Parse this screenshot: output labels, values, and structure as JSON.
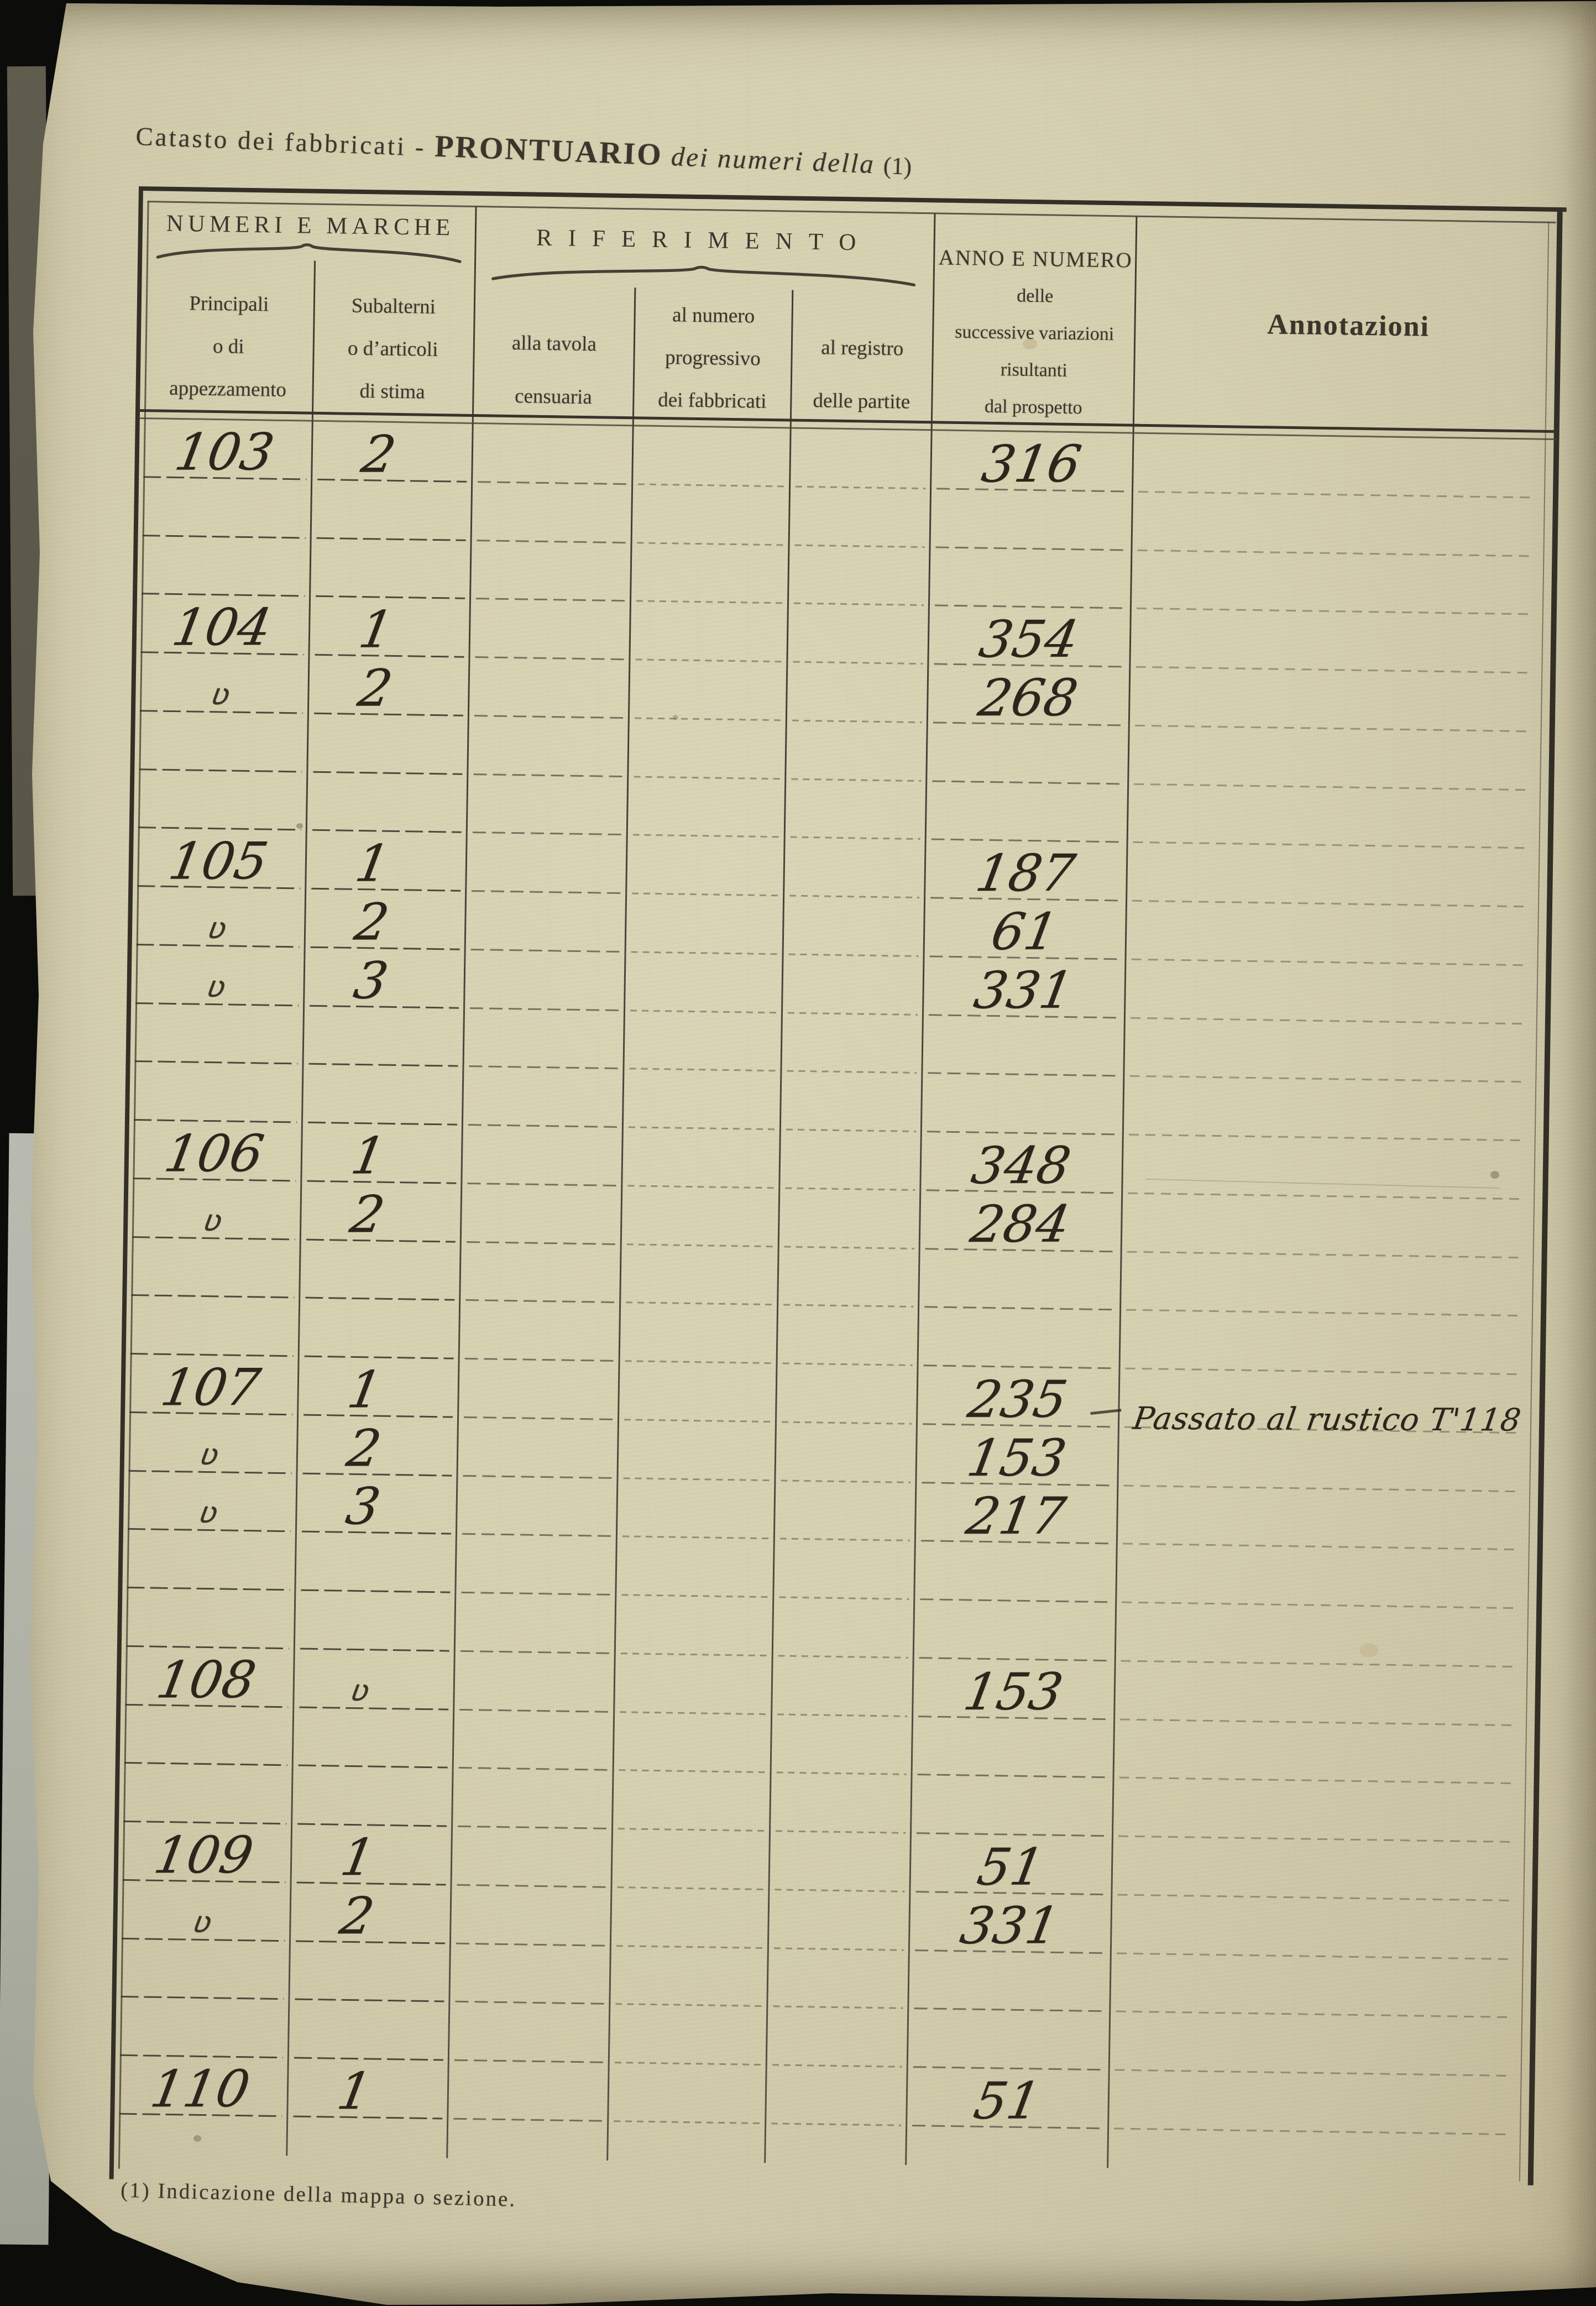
{
  "page": {
    "title": {
      "prefix": "Catasto dei fabbricati - ",
      "main": "PRONTUARIO",
      "italic": " dei numeri della ",
      "footnote_ref": "(1)"
    },
    "footnote": "(1) Indicazione della mappa o sezione."
  },
  "colors": {
    "paper": "#d5d0af",
    "ink_print": "#3b362c",
    "ink_hand": "#2b251b",
    "rule": "#474135",
    "background": "#0c0c0a"
  },
  "table": {
    "group_headers": [
      {
        "label": "NUMERI E MARCHE",
        "spans": [
          "principali",
          "subalterni"
        ]
      },
      {
        "label": "RIFERIMENTO",
        "spans": [
          "tavola",
          "progressivo",
          "registro"
        ]
      }
    ],
    "columns": [
      {
        "id": "principali",
        "label_lines": [
          "Principali",
          "o di",
          "appezzamento"
        ]
      },
      {
        "id": "subalterni",
        "label_lines": [
          "Subalterni",
          "o d’articoli",
          "di stima"
        ]
      },
      {
        "id": "tavola",
        "label_lines": [
          "alla tavola",
          "censuaria"
        ]
      },
      {
        "id": "progressivo",
        "label_lines": [
          "al numero",
          "progressivo",
          "dei fabbricati"
        ]
      },
      {
        "id": "registro",
        "label_lines": [
          "al registro",
          "delle partite"
        ]
      },
      {
        "id": "anno",
        "label_lines": [
          "ANNO E NUMERO",
          "delle",
          "successive variazioni",
          "risultanti",
          "dal prospetto"
        ]
      },
      {
        "id": "annotazioni",
        "label_lines": [
          "Annotazioni"
        ]
      }
    ],
    "ditto_mark": "ʋ",
    "rows": [
      {
        "principali": "103",
        "subalterni": "2",
        "anno": "316"
      },
      {},
      {},
      {
        "principali": "104",
        "subalterni": "1",
        "anno": "354"
      },
      {
        "principali": "ʋ",
        "subalterni": "2",
        "anno": "268"
      },
      {},
      {},
      {
        "principali": "105",
        "subalterni": "1",
        "anno": "187"
      },
      {
        "principali": "ʋ",
        "subalterni": "2",
        "anno": "61"
      },
      {
        "principali": "ʋ",
        "subalterni": "3",
        "anno": "331"
      },
      {},
      {},
      {
        "principali": "106",
        "subalterni": "1",
        "anno": "348"
      },
      {
        "principali": "ʋ",
        "subalterni": "2",
        "anno": "284"
      },
      {},
      {},
      {
        "principali": "107",
        "subalterni": "1",
        "anno": "235",
        "anno_dash": true,
        "annotazioni": "Passato al rustico T'118"
      },
      {
        "principali": "ʋ",
        "subalterni": "2",
        "anno": "153"
      },
      {
        "principali": "ʋ",
        "subalterni": "3",
        "anno": "217"
      },
      {},
      {},
      {
        "principali": "108",
        "subalterni": "ʋ",
        "anno": "153"
      },
      {},
      {},
      {
        "principali": "109",
        "subalterni": "1",
        "anno": "51"
      },
      {
        "principali": "ʋ",
        "subalterni": "2",
        "anno": "331"
      },
      {},
      {},
      {
        "principali": "110",
        "subalterni": "1",
        "anno": "51"
      }
    ]
  }
}
